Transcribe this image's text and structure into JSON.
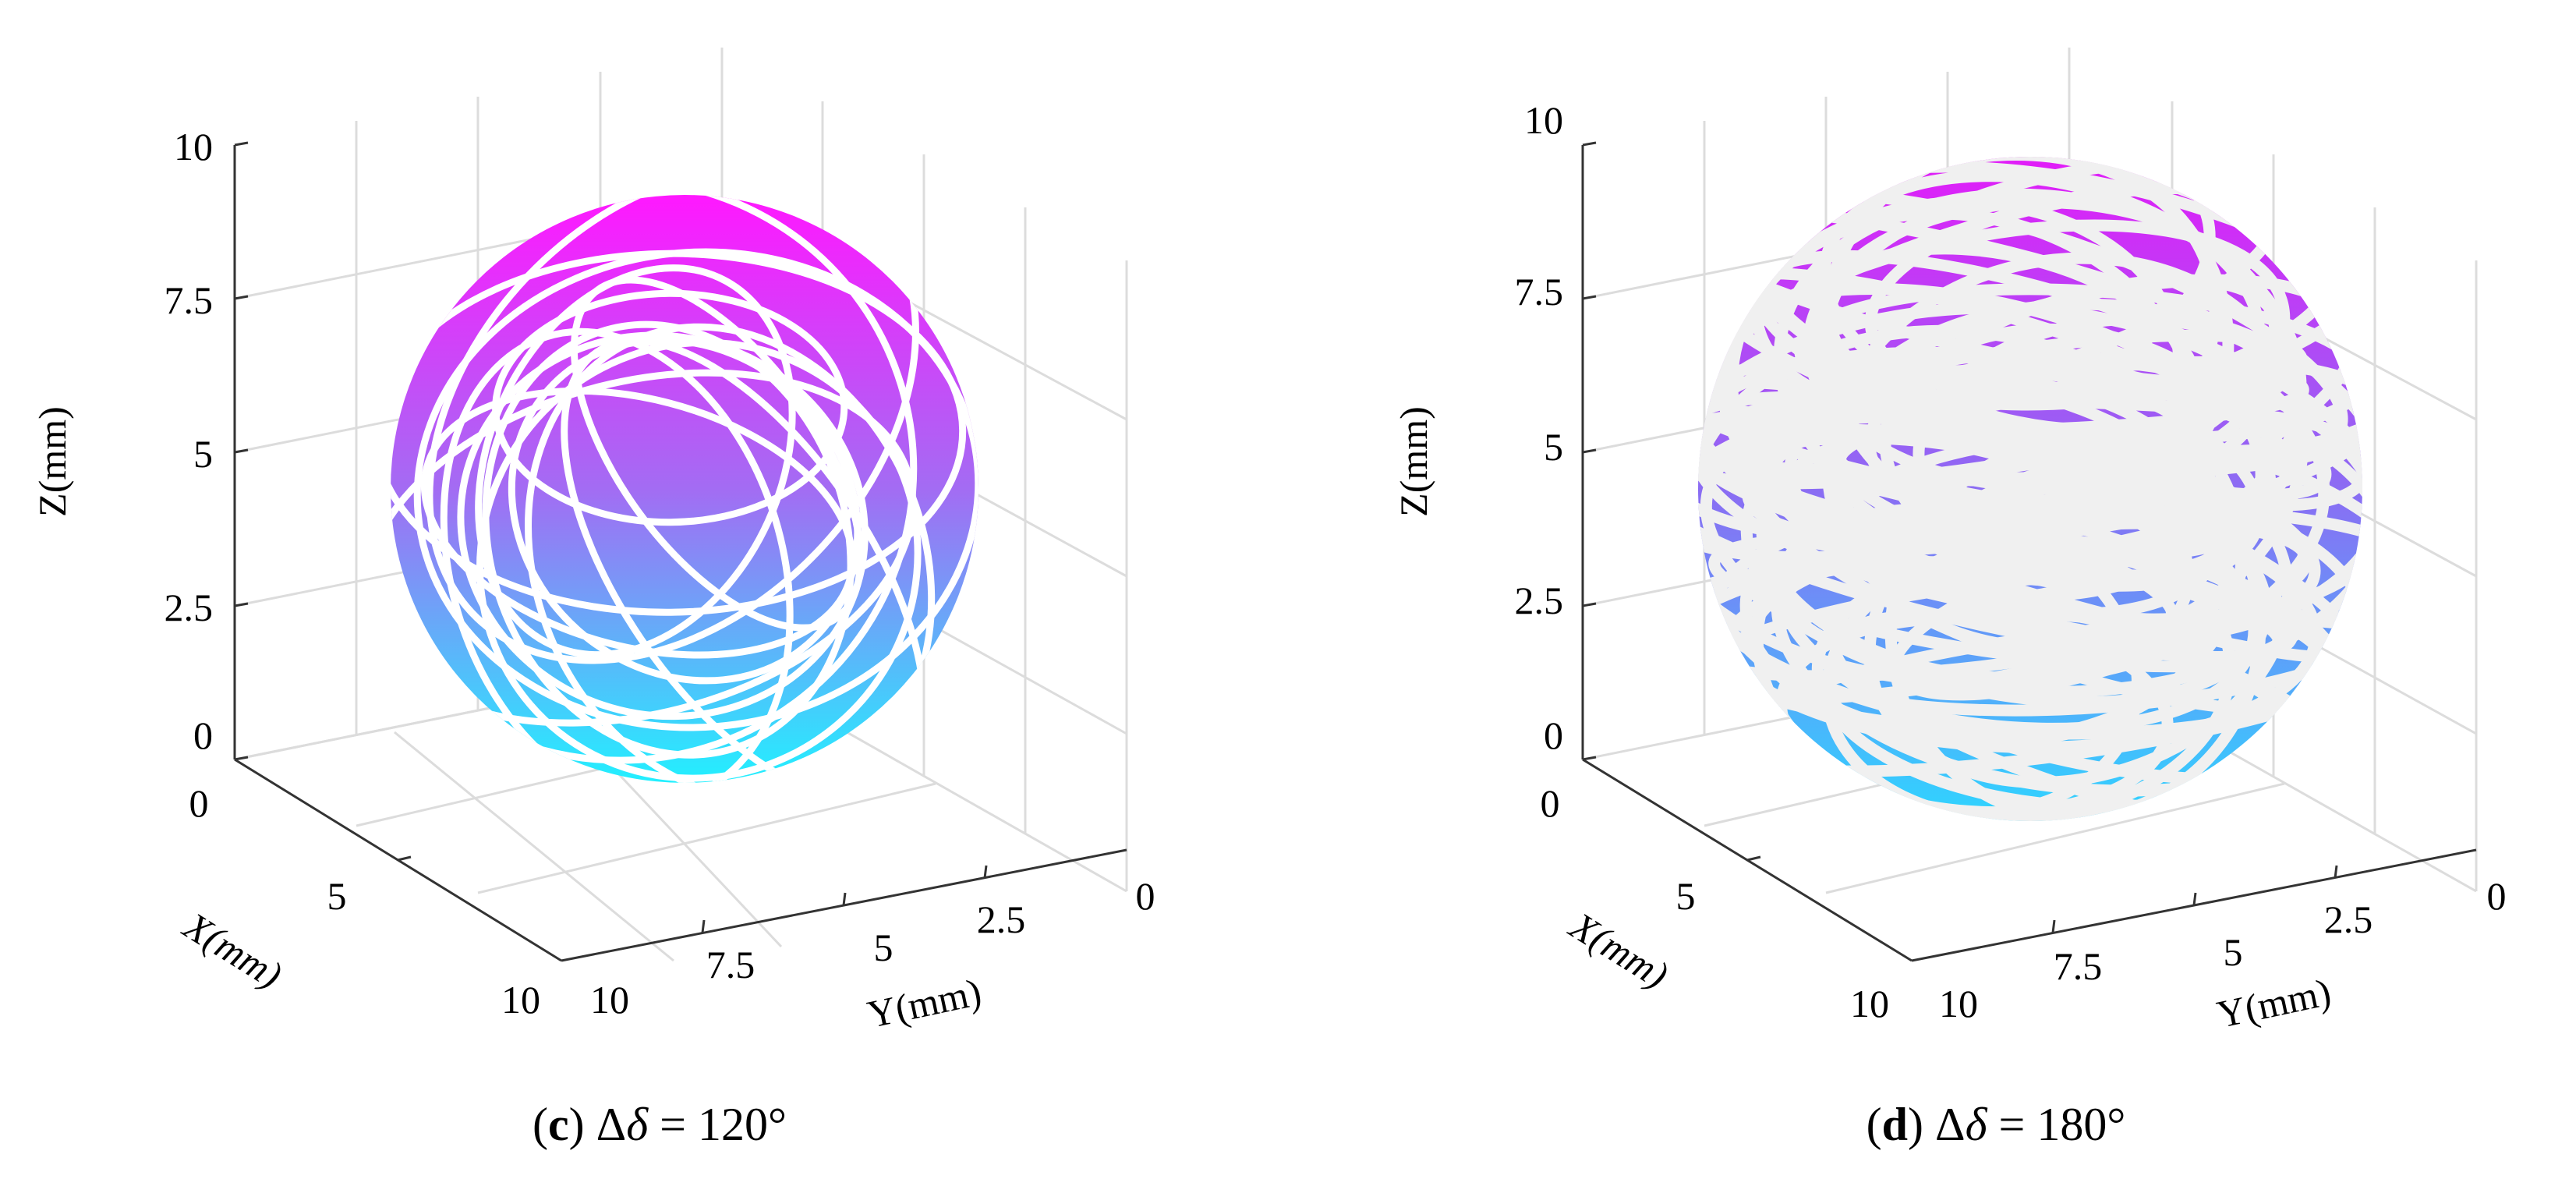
{
  "chart_data": [
    {
      "panel": "c",
      "type": "surface3d",
      "caption": {
        "letter": "c",
        "symbol": "Δ",
        "variable": "δ",
        "relation": "=",
        "value": "120°"
      },
      "xlabel": "X(mm)",
      "ylabel": "Y(mm)",
      "zlabel": "Z(mm)",
      "xlim": [
        0,
        10
      ],
      "ylim": [
        0,
        10
      ],
      "zlim": [
        0,
        10
      ],
      "x_ticks": [
        "0",
        "5",
        "10"
      ],
      "y_ticks": [
        "10",
        "7.5",
        "5",
        "2.5",
        "0"
      ],
      "z_ticks": [
        "0",
        "2.5",
        "5",
        "7.5",
        "10"
      ],
      "sphere": {
        "center": [
          5,
          5,
          5
        ],
        "radius": 5
      },
      "colormap": {
        "top": "#ff18ff",
        "middle": "#a36cf3",
        "bottom": "#22f0ff"
      },
      "line_color": "#ffffff",
      "grid": true
    },
    {
      "panel": "d",
      "type": "surface3d",
      "caption": {
        "letter": "d",
        "symbol": "Δ",
        "variable": "δ",
        "relation": "=",
        "value": "180°"
      },
      "xlabel": "X(mm)",
      "ylabel": "Y(mm)",
      "zlabel": "Z(mm)",
      "xlim": [
        0,
        10
      ],
      "ylim": [
        0,
        10
      ],
      "zlim": [
        0,
        10
      ],
      "x_ticks": [
        "0",
        "5",
        "10"
      ],
      "y_ticks": [
        "10",
        "7.5",
        "5",
        "2.5",
        "0"
      ],
      "z_ticks": [
        "0",
        "2.5",
        "5",
        "7.5",
        "10"
      ],
      "sphere": {
        "center": [
          5,
          5,
          5
        ],
        "radius": 5
      },
      "colormap": {
        "top": "#e21cf8",
        "middle": "#8b6cf3",
        "bottom": "#2ed5ff"
      },
      "line_color": "#f0f0f0",
      "grid": true
    }
  ]
}
